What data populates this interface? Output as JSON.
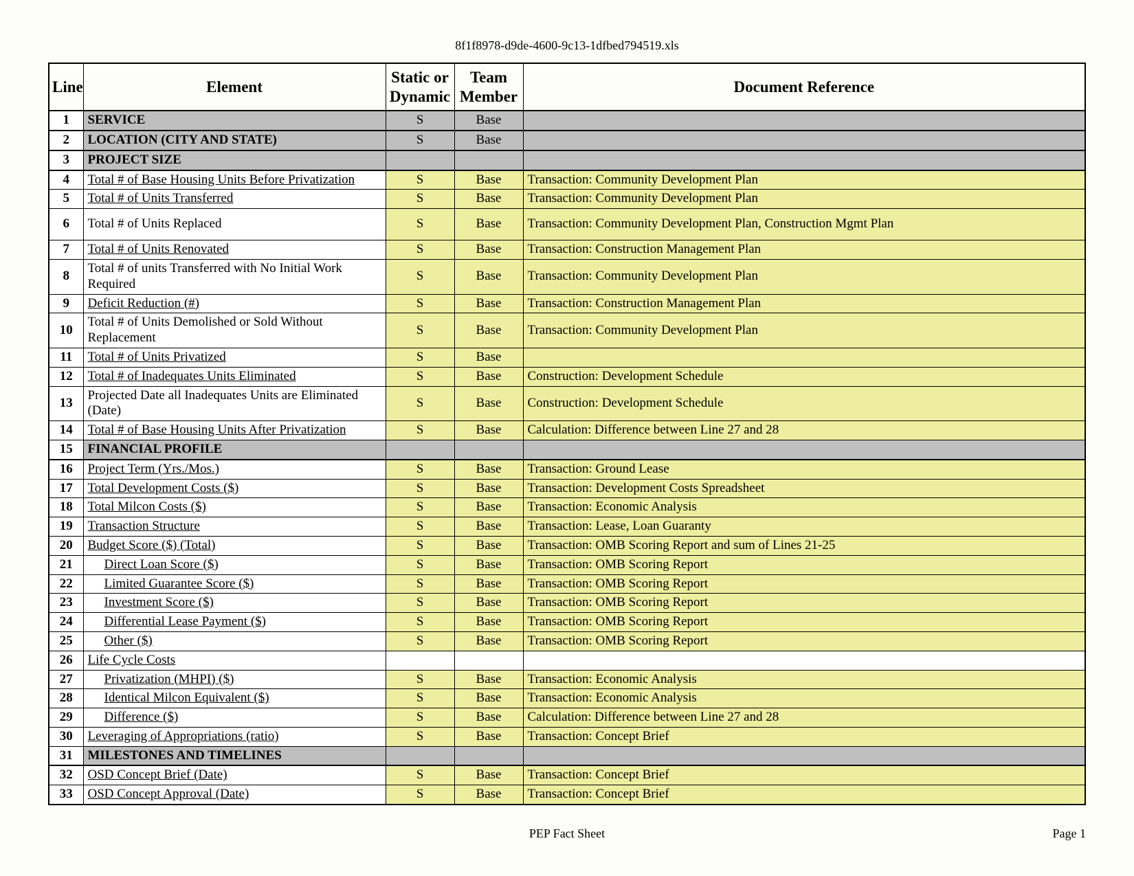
{
  "filename": "8f1f8978-d9de-4600-9c13-1dfbed794519.xls",
  "footer_center": "PEP Fact Sheet",
  "footer_right": "Page 1",
  "columns": {
    "line": "Line",
    "element": "Element",
    "static_dynamic": "Static or Dynamic",
    "team_member": "Team Member",
    "document_reference": "Document Reference"
  },
  "rows": [
    {
      "n": "1",
      "kind": "section",
      "element": "SERVICE",
      "sd": "S",
      "tm": "Base",
      "doc": ""
    },
    {
      "n": "2",
      "kind": "section",
      "element": "LOCATION (CITY AND STATE)",
      "sd": "S",
      "tm": "Base",
      "doc": ""
    },
    {
      "n": "3",
      "kind": "section",
      "element": "PROJECT SIZE",
      "sd": "",
      "tm": "",
      "doc": ""
    },
    {
      "n": "4",
      "kind": "data",
      "element": "Total # of Base Housing Units Before Privatization",
      "sd": "S",
      "tm": "Base",
      "doc": "Transaction:  Community Development Plan",
      "ul": true
    },
    {
      "n": "5",
      "kind": "data",
      "element": "Total # of Units Transferred",
      "sd": "S",
      "tm": "Base",
      "doc": "Transaction:  Community Development Plan",
      "ul": true
    },
    {
      "n": "6",
      "kind": "data",
      "tall": true,
      "element": "Total # of Units Replaced",
      "sd": "S",
      "tm": "Base",
      "doc": "Transaction:  Community Development Plan, Construction Mgmt Plan"
    },
    {
      "n": "7",
      "kind": "data",
      "element": "Total # of Units Renovated",
      "sd": "S",
      "tm": "Base",
      "doc": "Transaction:  Construction Management Plan",
      "ul": true
    },
    {
      "n": "8",
      "kind": "data",
      "tall": true,
      "element": "Total # of units Transferred with No Initial Work Required",
      "sd": "S",
      "tm": "Base",
      "doc": "Transaction:  Community Development Plan"
    },
    {
      "n": "9",
      "kind": "data",
      "element": "Deficit Reduction (#)",
      "sd": "S",
      "tm": "Base",
      "doc": "Transaction:  Construction Management Plan",
      "ul": true
    },
    {
      "n": "10",
      "kind": "data",
      "tall": true,
      "element": "Total # of Units Demolished or Sold Without Replacement",
      "sd": "S",
      "tm": "Base",
      "doc": "Transaction:  Community Development Plan"
    },
    {
      "n": "11",
      "kind": "data",
      "element": "Total # of Units Privatized",
      "sd": "S",
      "tm": "Base",
      "doc": "",
      "ul": true
    },
    {
      "n": "12",
      "kind": "data",
      "element": "Total # of Inadequates Units Eliminated",
      "sd": "S",
      "tm": "Base",
      "doc": "Construction:  Development Schedule",
      "ul": true
    },
    {
      "n": "13",
      "kind": "data",
      "tall": true,
      "element": "Projected Date all Inadequates Units are Eliminated (Date)",
      "sd": "S",
      "tm": "Base",
      "doc": "Construction:  Development Schedule"
    },
    {
      "n": "14",
      "kind": "data",
      "element": "Total # of Base Housing Units After Privatization",
      "sd": "S",
      "tm": "Base",
      "doc": "Calculation:  Difference between Line 27 and 28",
      "ul": true
    },
    {
      "n": "15",
      "kind": "section",
      "element": "FINANCIAL PROFILE",
      "sd": "",
      "tm": "",
      "doc": ""
    },
    {
      "n": "16",
      "kind": "data",
      "element": "Project Term (Yrs./Mos.)",
      "sd": "S",
      "tm": "Base",
      "doc": "Transaction:  Ground Lease",
      "ul": true
    },
    {
      "n": "17",
      "kind": "data",
      "element": "Total Development Costs ($)",
      "sd": "S",
      "tm": "Base",
      "doc": "Transaction:  Development Costs Spreadsheet",
      "ul": true
    },
    {
      "n": "18",
      "kind": "data",
      "element": "Total Milcon Costs ($)",
      "sd": "S",
      "tm": "Base",
      "doc": "Transaction:  Economic Analysis",
      "ul": true
    },
    {
      "n": "19",
      "kind": "data",
      "element": "Transaction Structure",
      "sd": "S",
      "tm": "Base",
      "doc": "Transaction:  Lease, Loan Guaranty",
      "ul": true
    },
    {
      "n": "20",
      "kind": "data",
      "element": "Budget Score ($) (Total)",
      "sd": "S",
      "tm": "Base",
      "doc": "Transaction:  OMB Scoring Report and sum of Lines 21-25",
      "ul": true
    },
    {
      "n": "21",
      "kind": "data",
      "indent": 2,
      "element": "Direct Loan Score ($)",
      "sd": "S",
      "tm": "Base",
      "doc": "Transaction:  OMB Scoring Report",
      "ul": true
    },
    {
      "n": "22",
      "kind": "data",
      "indent": 2,
      "element": "Limited Guarantee Score ($)",
      "sd": "S",
      "tm": "Base",
      "doc": "Transaction:  OMB Scoring Report",
      "ul": true
    },
    {
      "n": "23",
      "kind": "data",
      "indent": 2,
      "element": "Investment Score ($)",
      "sd": "S",
      "tm": "Base",
      "doc": "Transaction:  OMB Scoring Report",
      "ul": true
    },
    {
      "n": "24",
      "kind": "data",
      "indent": 2,
      "element": "Differential Lease Payment ($)",
      "sd": "S",
      "tm": "Base",
      "doc": "Transaction:  OMB Scoring Report",
      "ul": true
    },
    {
      "n": "25",
      "kind": "data",
      "indent": 2,
      "element": "Other  ($)",
      "sd": "S",
      "tm": "Base",
      "doc": "Transaction:  OMB Scoring Report",
      "ul": true
    },
    {
      "n": "26",
      "kind": "plain",
      "element": "Life Cycle Costs",
      "sd": "",
      "tm": "",
      "doc": "",
      "ul": true
    },
    {
      "n": "27",
      "kind": "data",
      "indent": 2,
      "element": "Privatization (MHPI) ($)",
      "sd": "S",
      "tm": "Base",
      "doc": "Transaction:  Economic Analysis",
      "ul": true
    },
    {
      "n": "28",
      "kind": "data",
      "indent": 2,
      "element": "Identical Milcon Equivalent ($)",
      "sd": "S",
      "tm": "Base",
      "doc": "Transaction:  Economic Analysis",
      "ul": true
    },
    {
      "n": "29",
      "kind": "data",
      "indent": 2,
      "element": "Difference ($)",
      "sd": "S",
      "tm": "Base",
      "doc": "Calculation:  Difference between Line 27 and 28",
      "ul": true
    },
    {
      "n": "30",
      "kind": "data",
      "element": "Leveraging of Appropriations (ratio)",
      "sd": "S",
      "tm": "Base",
      "doc": "Transaction:  Concept Brief",
      "ul": true
    },
    {
      "n": "31",
      "kind": "section",
      "element": "MILESTONES AND TIMELINES",
      "sd": "",
      "tm": "",
      "doc": ""
    },
    {
      "n": "32",
      "kind": "data",
      "element": "OSD Concept Brief (Date)",
      "sd": "S",
      "tm": "Base",
      "doc": "Transaction:  Concept Brief",
      "ul": true
    },
    {
      "n": "33",
      "kind": "data",
      "element": "OSD Concept Approval (Date)",
      "sd": "S",
      "tm": "Base",
      "doc": "Transaction:  Concept Brief",
      "ul": true
    }
  ],
  "style": {
    "section_bg": "#bfbfbf",
    "yellow_bg": "#eeeea0",
    "border_color": "#000000",
    "font_family": "Times New Roman",
    "header_fontsize": 23,
    "body_fontsize": 19
  }
}
